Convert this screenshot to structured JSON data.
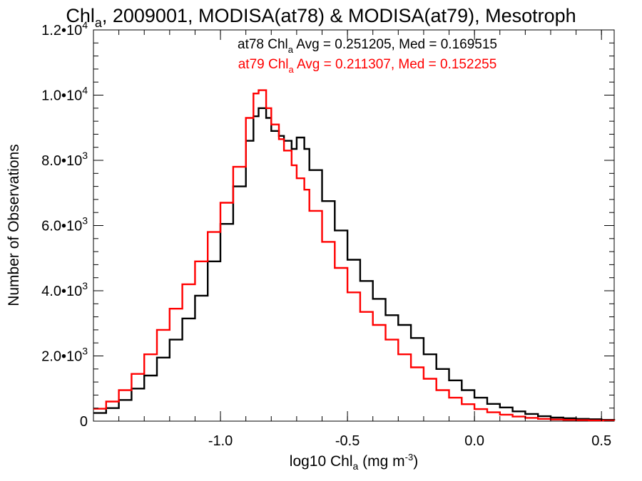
{
  "chart_data": {
    "type": "line",
    "title": {
      "pre": "Chl",
      "sub": "a",
      "post": ", 2009001, MODISA(at78) & MODISA(at79), Mesotroph"
    },
    "xlabel": {
      "pre": "log10 Chl",
      "sub": "a",
      "mid": " (mg m",
      "sup": "-3",
      "post": ")"
    },
    "ylabel": "Number of Observations",
    "xlim": [
      -1.5,
      0.55
    ],
    "ylim": [
      0,
      12000
    ],
    "x_ticks": [
      {
        "value": -1.0,
        "label": "-1.0"
      },
      {
        "value": -0.5,
        "label": "-0.5"
      },
      {
        "value": 0.0,
        "label": "0.0"
      },
      {
        "value": 0.5,
        "label": "0.5"
      }
    ],
    "y_ticks": [
      {
        "value": 0,
        "mant": "0",
        "exp": ""
      },
      {
        "value": 2000,
        "mant": "2.0•10",
        "exp": "3"
      },
      {
        "value": 4000,
        "mant": "4.0•10",
        "exp": "3"
      },
      {
        "value": 6000,
        "mant": "6.0•10",
        "exp": "3"
      },
      {
        "value": 8000,
        "mant": "8.0•10",
        "exp": "3"
      },
      {
        "value": 10000,
        "mant": "1.0•10",
        "exp": "4"
      },
      {
        "value": 12000,
        "mant": "1.2•10",
        "exp": "4"
      }
    ],
    "series": [
      {
        "name": "at78",
        "color": "#000000",
        "annotation": {
          "pre": "at78 Chl",
          "sub": "a",
          "post": " Avg = 0.251205, Med = 0.169515"
        },
        "x": [
          -1.5,
          -1.45,
          -1.4,
          -1.35,
          -1.3,
          -1.25,
          -1.2,
          -1.15,
          -1.1,
          -1.05,
          -1.0,
          -0.95,
          -0.9,
          -0.87,
          -0.85,
          -0.82,
          -0.8,
          -0.77,
          -0.75,
          -0.72,
          -0.7,
          -0.67,
          -0.65,
          -0.6,
          -0.55,
          -0.5,
          -0.45,
          -0.4,
          -0.35,
          -0.3,
          -0.25,
          -0.2,
          -0.15,
          -0.1,
          -0.05,
          0.0,
          0.05,
          0.1,
          0.15,
          0.2,
          0.25,
          0.3,
          0.35,
          0.4,
          0.45,
          0.5,
          0.55
        ],
        "y": [
          250,
          400,
          650,
          1000,
          1400,
          1950,
          2500,
          3150,
          3850,
          4900,
          6050,
          7200,
          8600,
          9350,
          9600,
          9300,
          8900,
          8750,
          8600,
          8350,
          8700,
          8350,
          7700,
          6750,
          5850,
          4950,
          4300,
          3750,
          3250,
          2950,
          2550,
          2050,
          1600,
          1250,
          950,
          720,
          530,
          420,
          300,
          220,
          150,
          110,
          90,
          70,
          60,
          40,
          30
        ]
      },
      {
        "name": "at79",
        "color": "#ff0000",
        "annotation": {
          "pre": "at79 Chl",
          "sub": "a",
          "post": " Avg = 0.211307, Med = 0.152255"
        },
        "x": [
          -1.5,
          -1.45,
          -1.4,
          -1.35,
          -1.3,
          -1.25,
          -1.2,
          -1.15,
          -1.1,
          -1.05,
          -1.0,
          -0.95,
          -0.9,
          -0.87,
          -0.85,
          -0.82,
          -0.8,
          -0.77,
          -0.75,
          -0.72,
          -0.7,
          -0.67,
          -0.65,
          -0.6,
          -0.55,
          -0.5,
          -0.45,
          -0.4,
          -0.35,
          -0.3,
          -0.25,
          -0.2,
          -0.15,
          -0.1,
          -0.05,
          0.0,
          0.05,
          0.1,
          0.15,
          0.2,
          0.25,
          0.3,
          0.35,
          0.4,
          0.45,
          0.5,
          0.55
        ],
        "y": [
          380,
          600,
          950,
          1450,
          2050,
          2800,
          3450,
          4200,
          4900,
          5800,
          6700,
          7800,
          9300,
          10050,
          10150,
          9600,
          9100,
          8650,
          8300,
          7850,
          7450,
          7100,
          6450,
          5500,
          4700,
          3950,
          3350,
          2950,
          2500,
          2050,
          1650,
          1300,
          950,
          720,
          520,
          370,
          270,
          200,
          140,
          100,
          70,
          50,
          40,
          30,
          25,
          20,
          15
        ]
      }
    ]
  }
}
